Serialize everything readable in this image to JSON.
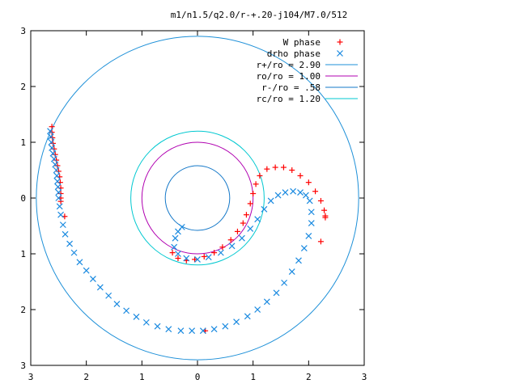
{
  "chart_data": {
    "type": "scatter",
    "title": "m1/n1.5/q2.0/r-+.20-j104/M7.0/512",
    "xlim": [
      -3,
      3
    ],
    "ylim": [
      -3,
      3
    ],
    "aspect": "equal",
    "grid": false,
    "legend_position": "top-right",
    "x_tick_labels": [
      "3",
      "2",
      "1",
      "0",
      "1",
      "2",
      "3"
    ],
    "y_tick_labels": [
      "3",
      "2",
      "1",
      "0",
      "1",
      "2",
      "3"
    ],
    "tick_values": [
      -3,
      -2,
      -1,
      0,
      1,
      2,
      3
    ],
    "circles": [
      {
        "label": "r+/ro = 2.90",
        "radius": 2.9,
        "color": "#1e90d8"
      },
      {
        "label": "ro/ro = 1.00",
        "radius": 1.0,
        "color": "#b000b0"
      },
      {
        "label": "r-/ro = .58",
        "radius": 0.58,
        "color": "#1478c8"
      },
      {
        "label": "rc/ro = 1.20",
        "radius": 1.2,
        "color": "#00c8d0"
      }
    ],
    "series": [
      {
        "name": "W phase",
        "marker": "+",
        "color": "#ff0000",
        "points": [
          [
            -2.62,
            1.28
          ],
          [
            -2.62,
            1.18
          ],
          [
            -2.61,
            1.08
          ],
          [
            -2.6,
            0.98
          ],
          [
            -2.58,
            0.88
          ],
          [
            -2.56,
            0.78
          ],
          [
            -2.54,
            0.68
          ],
          [
            -2.52,
            0.58
          ],
          [
            -2.5,
            0.48
          ],
          [
            -2.48,
            0.38
          ],
          [
            -2.47,
            0.28
          ],
          [
            -2.46,
            0.18
          ],
          [
            -2.46,
            0.08
          ],
          [
            -2.46,
            0.0
          ],
          [
            -2.46,
            -0.06
          ],
          [
            -2.39,
            -0.33
          ],
          [
            1.4,
            0.55
          ],
          [
            1.25,
            0.52
          ],
          [
            1.12,
            0.4
          ],
          [
            1.05,
            0.25
          ],
          [
            1.0,
            0.08
          ],
          [
            0.95,
            -0.1
          ],
          [
            0.88,
            -0.3
          ],
          [
            0.82,
            -0.45
          ],
          [
            0.72,
            -0.6
          ],
          [
            0.6,
            -0.75
          ],
          [
            0.45,
            -0.88
          ],
          [
            0.3,
            -0.98
          ],
          [
            0.12,
            -1.05
          ],
          [
            -0.05,
            -1.1
          ],
          [
            -0.2,
            -1.12
          ],
          [
            -0.35,
            -1.08
          ],
          [
            -0.45,
            -0.98
          ],
          [
            1.55,
            0.55
          ],
          [
            1.7,
            0.5
          ],
          [
            1.85,
            0.4
          ],
          [
            2.0,
            0.28
          ],
          [
            2.12,
            0.12
          ],
          [
            2.22,
            -0.05
          ],
          [
            2.28,
            -0.22
          ],
          [
            2.3,
            -0.32
          ],
          [
            2.3,
            -0.35
          ],
          [
            2.22,
            -0.78
          ],
          [
            0.14,
            -2.38
          ]
        ]
      },
      {
        "name": "drho phase",
        "marker": "x",
        "color": "#1a8ae0",
        "points": [
          [
            -2.65,
            1.2
          ],
          [
            -2.64,
            1.1
          ],
          [
            -2.63,
            1.0
          ],
          [
            -2.62,
            0.9
          ],
          [
            -2.6,
            0.8
          ],
          [
            -2.58,
            0.7
          ],
          [
            -2.56,
            0.6
          ],
          [
            -2.54,
            0.5
          ],
          [
            -2.53,
            0.4
          ],
          [
            -2.52,
            0.3
          ],
          [
            -2.51,
            0.2
          ],
          [
            -2.5,
            0.1
          ],
          [
            -2.5,
            0.0
          ],
          [
            -2.48,
            -0.15
          ],
          [
            -2.46,
            -0.3
          ],
          [
            -2.42,
            -0.48
          ],
          [
            -2.38,
            -0.65
          ],
          [
            -2.3,
            -0.82
          ],
          [
            -2.22,
            -0.98
          ],
          [
            -2.12,
            -1.15
          ],
          [
            -2.0,
            -1.3
          ],
          [
            -1.88,
            -1.45
          ],
          [
            -1.75,
            -1.6
          ],
          [
            -1.6,
            -1.75
          ],
          [
            -1.45,
            -1.9
          ],
          [
            -1.28,
            -2.02
          ],
          [
            -1.1,
            -2.13
          ],
          [
            -0.92,
            -2.23
          ],
          [
            -0.72,
            -2.3
          ],
          [
            -0.52,
            -2.35
          ],
          [
            -0.3,
            -2.38
          ],
          [
            -0.1,
            -2.38
          ],
          [
            0.1,
            -2.38
          ],
          [
            0.3,
            -2.35
          ],
          [
            0.5,
            -2.3
          ],
          [
            0.7,
            -2.22
          ],
          [
            0.9,
            -2.12
          ],
          [
            1.08,
            -2.0
          ],
          [
            1.25,
            -1.86
          ],
          [
            1.42,
            -1.7
          ],
          [
            1.56,
            -1.52
          ],
          [
            1.7,
            -1.32
          ],
          [
            1.82,
            -1.12
          ],
          [
            1.92,
            -0.9
          ],
          [
            2.0,
            -0.68
          ],
          [
            2.05,
            -0.45
          ],
          [
            2.05,
            -0.25
          ],
          [
            2.02,
            -0.05
          ],
          [
            1.95,
            0.05
          ],
          [
            1.85,
            0.1
          ],
          [
            1.72,
            0.12
          ],
          [
            1.58,
            0.1
          ],
          [
            1.45,
            0.05
          ],
          [
            1.32,
            -0.05
          ],
          [
            1.2,
            -0.2
          ],
          [
            1.08,
            -0.38
          ],
          [
            0.95,
            -0.55
          ],
          [
            0.8,
            -0.72
          ],
          [
            0.62,
            -0.86
          ],
          [
            0.42,
            -0.98
          ],
          [
            0.2,
            -1.06
          ],
          [
            0.0,
            -1.1
          ],
          [
            -0.2,
            -1.08
          ],
          [
            -0.35,
            -1.0
          ],
          [
            -0.42,
            -0.88
          ],
          [
            -0.4,
            -0.72
          ],
          [
            -0.35,
            -0.6
          ],
          [
            -0.28,
            -0.52
          ]
        ]
      }
    ]
  }
}
